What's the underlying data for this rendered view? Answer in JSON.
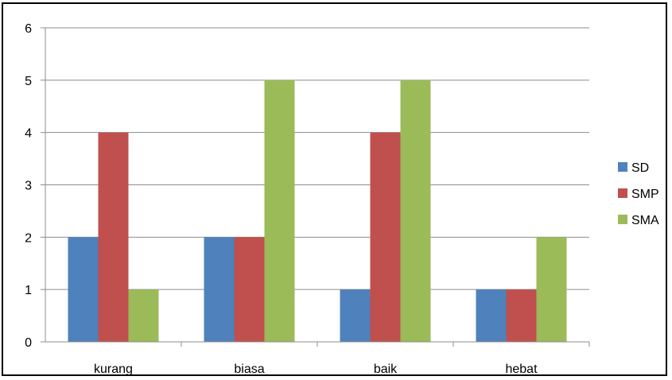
{
  "chart_data": {
    "type": "bar",
    "title": "",
    "xlabel": "",
    "ylabel": "",
    "categories": [
      "kurang",
      "biasa",
      "baik",
      "hebat"
    ],
    "ylim": [
      0,
      6
    ],
    "yticks": [
      "0",
      "1",
      "2",
      "3",
      "4",
      "5",
      "6"
    ],
    "grid": true,
    "legend_position": "right",
    "series": [
      {
        "name": "SD",
        "color": "#4F81BD",
        "values": [
          2,
          2,
          1,
          1
        ]
      },
      {
        "name": "SMP",
        "color": "#C0504D",
        "values": [
          4,
          2,
          4,
          1
        ]
      },
      {
        "name": "SMA",
        "color": "#9BBB59",
        "values": [
          1,
          5,
          5,
          2
        ]
      }
    ]
  }
}
